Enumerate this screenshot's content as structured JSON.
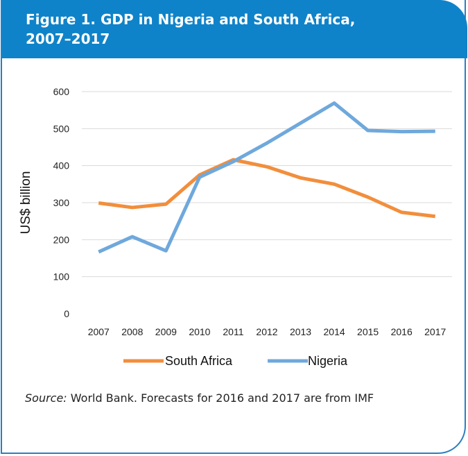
{
  "figure": {
    "title_line1": "Figure 1. GDP in Nigeria and South Africa,",
    "title_line2": "2007–2017"
  },
  "chart_data": {
    "type": "line",
    "x": [
      "2007",
      "2008",
      "2009",
      "2010",
      "2011",
      "2012",
      "2013",
      "2014",
      "2015",
      "2016",
      "2017"
    ],
    "series": [
      {
        "name": "South Africa",
        "color": "#f28e3c",
        "values": [
          299,
          287,
          296,
          375,
          416,
          397,
          367,
          350,
          315,
          274,
          263
        ]
      },
      {
        "name": "Nigeria",
        "color": "#6fa8dc",
        "values": [
          167,
          208,
          170,
          369,
          411,
          461,
          515,
          569,
          495,
          492,
          493
        ]
      }
    ],
    "ylabel": "US$ billion",
    "ylim": [
      0,
      600
    ],
    "yticks": [
      "0",
      "100",
      "200",
      "300",
      "400",
      "500",
      "600"
    ],
    "grid": true,
    "legend": "bottom"
  },
  "source": {
    "label": "Source:",
    "text": " World Bank. Forecasts for 2016 and 2017 are from IMF"
  }
}
